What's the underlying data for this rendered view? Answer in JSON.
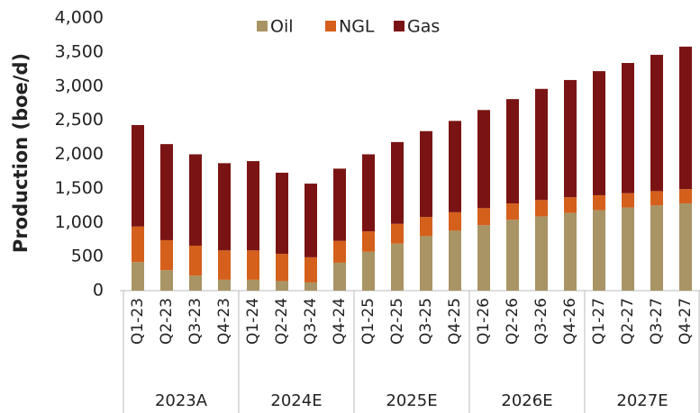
{
  "chart_data": {
    "type": "stacked_bar",
    "y_label": "Production (boe/d)",
    "categories": [
      "Q1-23",
      "Q2-23",
      "Q3-23",
      "Q4-23",
      "Q1-24",
      "Q2-24",
      "Q3-24",
      "Q4-24",
      "Q1-25",
      "Q2-25",
      "Q3-25",
      "Q4-25",
      "Q1-26",
      "Q2-26",
      "Q3-26",
      "Q4-26",
      "Q1-27",
      "Q2-27",
      "Q3-27",
      "Q4-27"
    ],
    "groups": [
      "2023A",
      "2024E",
      "2025E",
      "2026E",
      "2027E"
    ],
    "series": [
      {
        "name": "Oil",
        "color": "#a89464",
        "values": [
          420,
          300,
          220,
          160,
          160,
          140,
          120,
          410,
          570,
          690,
          800,
          880,
          960,
          1040,
          1090,
          1140,
          1180,
          1220,
          1250,
          1280
        ]
      },
      {
        "name": "NGL",
        "color": "#d4601c",
        "values": [
          520,
          440,
          440,
          430,
          430,
          400,
          370,
          320,
          300,
          290,
          280,
          270,
          250,
          240,
          240,
          230,
          220,
          210,
          210,
          210
        ]
      },
      {
        "name": "Gas",
        "color": "#7a1414",
        "values": [
          1490,
          1410,
          1340,
          1280,
          1310,
          1190,
          1080,
          1060,
          1130,
          1200,
          1260,
          1340,
          1440,
          1530,
          1630,
          1720,
          1820,
          1910,
          2000,
          2090
        ]
      }
    ],
    "ylim": [
      0,
      4000
    ],
    "yticks": [
      0,
      {
        "value": 500,
        "label": "500"
      },
      {
        "value": 1000,
        "label": "1,000"
      },
      {
        "value": 1500,
        "label": "1,500"
      },
      {
        "value": 2000,
        "label": "2,000"
      },
      {
        "value": 2500,
        "label": "2,500"
      },
      {
        "value": 3000,
        "label": "3,000"
      },
      {
        "value": 3500,
        "label": "3,500"
      },
      {
        "value": 4000,
        "label": "4,000"
      }
    ],
    "legend": "top"
  }
}
